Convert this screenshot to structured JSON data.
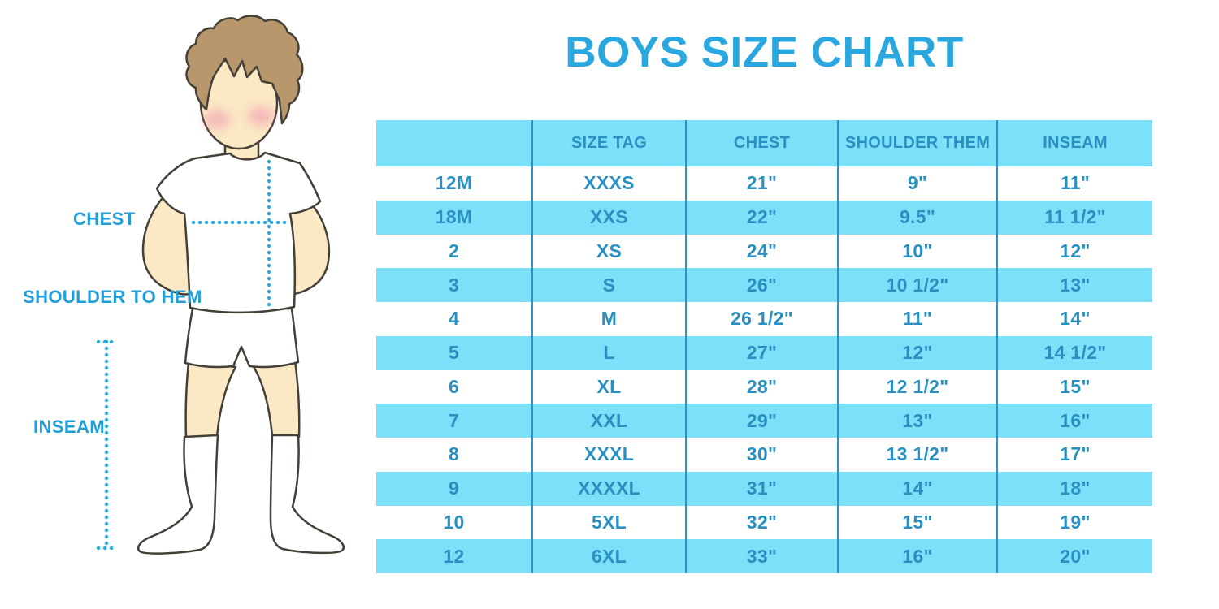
{
  "title": "BOYS SIZE CHART",
  "colors": {
    "title_blue": "#2AA7DE",
    "stripe_blue": "#7CE0F9",
    "divider_blue": "#2B94C5",
    "cell_text": "#2A90C2",
    "label_blue": "#1F9ED9",
    "dotted_blue": "#29ABE2",
    "hair_brown": "#B9976C",
    "skin": "#FBE8C5",
    "cheek_pink": "#F08CAE",
    "outline": "#443F37"
  },
  "diagram": {
    "labels": {
      "chest": "CHEST",
      "shoulder_to_hem": "SHOULDER TO HEM",
      "inseam": "INSEAM"
    }
  },
  "table": {
    "headers": [
      "",
      "SIZE TAG",
      "CHEST",
      "SHOULDER THEM",
      "INSEAM"
    ],
    "column_keys": [
      "size",
      "size-tag",
      "chest",
      "shoulder-hem",
      "inseam"
    ],
    "rows": [
      [
        "12M",
        "XXXS",
        "21\"",
        "9\"",
        "11\""
      ],
      [
        "18M",
        "XXS",
        "22\"",
        "9.5\"",
        "11 1/2\""
      ],
      [
        "2",
        "XS",
        "24\"",
        "10\"",
        "12\""
      ],
      [
        "3",
        "S",
        "26\"",
        "10 1/2\"",
        "13\""
      ],
      [
        "4",
        "M",
        "26 1/2\"",
        "11\"",
        "14\""
      ],
      [
        "5",
        "L",
        "27\"",
        "12\"",
        "14 1/2\""
      ],
      [
        "6",
        "XL",
        "28\"",
        "12 1/2\"",
        "15\""
      ],
      [
        "7",
        "XXL",
        "29\"",
        "13\"",
        "16\""
      ],
      [
        "8",
        "XXXL",
        "30\"",
        "13 1/2\"",
        "17\""
      ],
      [
        "9",
        "XXXXL",
        "31\"",
        "14\"",
        "18\""
      ],
      [
        "10",
        "5XL",
        "32\"",
        "15\"",
        "19\""
      ],
      [
        "12",
        "6XL",
        "33\"",
        "16\"",
        "20\""
      ]
    ]
  }
}
